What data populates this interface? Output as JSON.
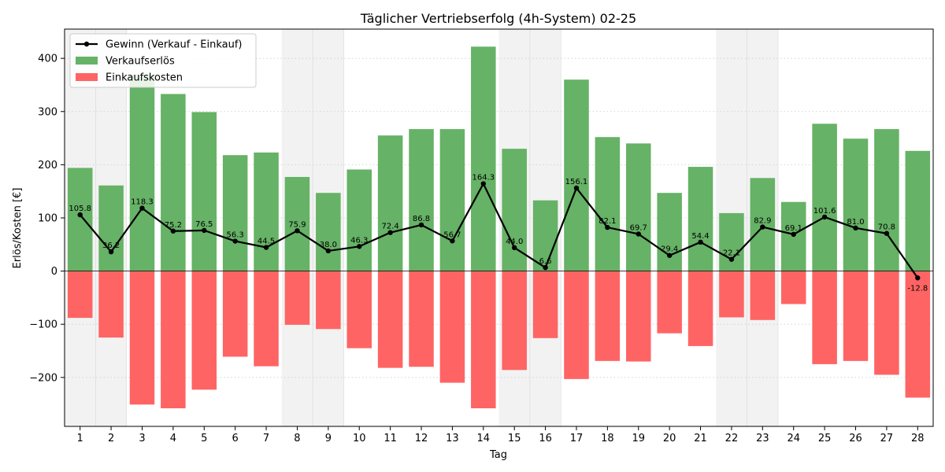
{
  "chart_data": {
    "type": "bar",
    "title": "Täglicher Vertriebserfolg (4h-System) 02-25",
    "xlabel": "Tag",
    "ylabel": "Erlös/Kosten [€]",
    "categories": [
      "1",
      "2",
      "3",
      "4",
      "5",
      "6",
      "7",
      "8",
      "9",
      "10",
      "11",
      "12",
      "13",
      "14",
      "15",
      "16",
      "17",
      "18",
      "19",
      "20",
      "21",
      "22",
      "23",
      "24",
      "25",
      "26",
      "27",
      "28"
    ],
    "ylim": [
      -292,
      455
    ],
    "yticks": [
      -200,
      -100,
      0,
      100,
      200,
      300,
      400
    ],
    "ytick_labels": [
      "−200",
      "−100",
      "0",
      "100",
      "200",
      "300",
      "400"
    ],
    "grid": "horizontal-dotted",
    "legend_position": "top-left",
    "shaded_days": [
      "1",
      "2",
      "8",
      "9",
      "15",
      "16",
      "22",
      "23"
    ],
    "series": [
      {
        "name": "Verkaufserlös",
        "kind": "bar",
        "color": "#66b266",
        "values": [
          194,
          161,
          369,
          333,
          299,
          218,
          223,
          177,
          147,
          191,
          255,
          267,
          267,
          422,
          230,
          133,
          360,
          252,
          240,
          147,
          196,
          109,
          175,
          130,
          277,
          249,
          267,
          226
        ]
      },
      {
        "name": "Einkaufskosten",
        "kind": "bar",
        "color": "#ff6464",
        "values": [
          -88,
          -125,
          -251,
          -258,
          -223,
          -161,
          -179,
          -101,
          -109,
          -145,
          -182,
          -180,
          -210,
          -258,
          -186,
          -126,
          -203,
          -169,
          -170,
          -117,
          -141,
          -87,
          -92,
          -62,
          -175,
          -169,
          -195,
          -238
        ]
      },
      {
        "name": "Gewinn (Verkauf - Einkauf)",
        "kind": "line",
        "color": "#000000",
        "values": [
          105.8,
          36.2,
          118.3,
          75.2,
          76.5,
          56.3,
          44.5,
          75.9,
          38.0,
          46.3,
          72.4,
          86.8,
          56.7,
          164.3,
          44.0,
          6.6,
          156.1,
          82.1,
          69.7,
          29.4,
          54.4,
          22.1,
          82.9,
          69.1,
          101.6,
          81.0,
          70.8,
          -12.8
        ],
        "labels": [
          "105.8",
          "36.2",
          "118.3",
          "75.2",
          "76.5",
          "56.3",
          "44.5",
          "75.9",
          "38.0",
          "46.3",
          "72.4",
          "86.8",
          "56.7",
          "164.3",
          "44.0",
          "6.6",
          "156.1",
          "82.1",
          "69.7",
          "29.4",
          "54.4",
          "22.1",
          "82.9",
          "69.1",
          "101.6",
          "81.0",
          "70.8",
          "-12.8"
        ]
      }
    ],
    "legend": [
      {
        "name": "Gewinn (Verkauf - Einkauf)",
        "kind": "line",
        "color": "#000000"
      },
      {
        "name": "Verkaufserlös",
        "kind": "bar",
        "color": "#66b266"
      },
      {
        "name": "Einkaufskosten",
        "kind": "bar",
        "color": "#ff6464"
      }
    ]
  }
}
